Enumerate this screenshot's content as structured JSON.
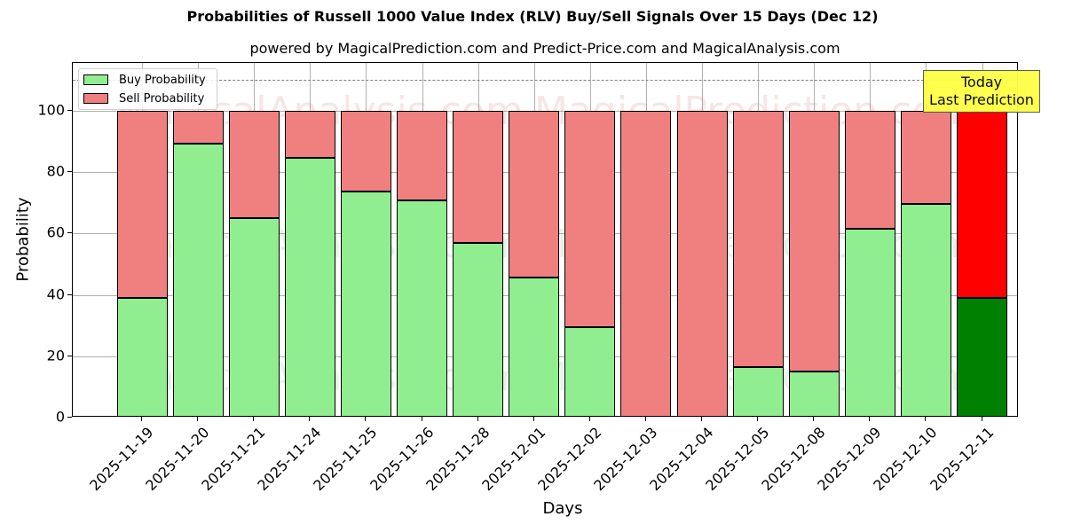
{
  "chart_data": {
    "type": "bar",
    "stacked": true,
    "title": "Probabilities of Russell 1000 Value Index (RLV) Buy/Sell Signals Over 15 Days (Dec 12)",
    "subtitle": "powered by MagicalPrediction.com and Predict-Price.com and MagicalAnalysis.com",
    "xlabel": "Days",
    "ylabel": "Probability",
    "ylim": [
      0,
      115
    ],
    "yticks": [
      0,
      20,
      40,
      60,
      80,
      100
    ],
    "grid": true,
    "legend_position": "upper left",
    "categories": [
      "2025-11-19",
      "2025-11-20",
      "2025-11-21",
      "2025-11-24",
      "2025-11-25",
      "2025-11-26",
      "2025-11-28",
      "2025-12-01",
      "2025-12-02",
      "2025-12-03",
      "2025-12-04",
      "2025-12-05",
      "2025-12-08",
      "2025-12-09",
      "2025-12-10",
      "2025-12-11"
    ],
    "series": [
      {
        "name": "Buy Probability",
        "color": "#90ee90",
        "values": [
          38.9,
          89.4,
          65.0,
          84.6,
          73.8,
          70.7,
          56.8,
          45.8,
          29.6,
          0,
          0,
          16.6,
          15.1,
          61.6,
          69.7,
          39.1
        ]
      },
      {
        "name": "Sell Probability",
        "color": "#f08080",
        "values": [
          61.1,
          10.6,
          35.0,
          15.4,
          26.2,
          29.3,
          43.2,
          54.2,
          70.4,
          100,
          100,
          83.4,
          84.9,
          38.4,
          30.3,
          60.9
        ]
      }
    ],
    "highlight": {
      "index": 15,
      "buy_color": "#008000",
      "sell_color": "#ff0000"
    },
    "reference_line": {
      "y": 110,
      "style": "dashed",
      "color": "#808080"
    },
    "annotation": {
      "text_line1": "Today",
      "text_line2": "Last Prediction",
      "background": "#ffff44"
    },
    "watermarks": [
      "MagicalAnalysis.com",
      "MagicalPrediction.com"
    ]
  }
}
